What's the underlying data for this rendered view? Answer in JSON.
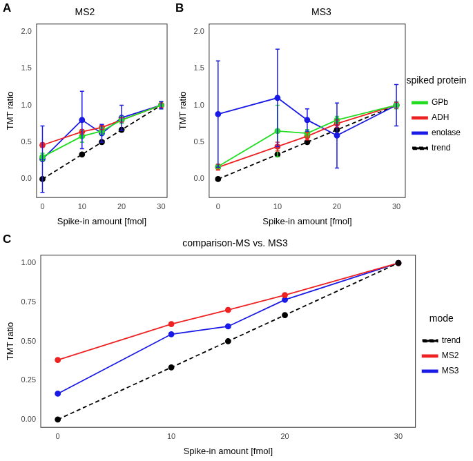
{
  "chart_data": [
    {
      "type": "line",
      "panel": "A",
      "title": "MS2",
      "x_label": "Spike-in amount [fmol]",
      "y_label": "TMT ratio",
      "x": [
        0,
        10,
        15,
        20,
        30
      ],
      "series": [
        {
          "name": "GPb",
          "color": "#22dd22",
          "marker": "circle",
          "line_style": "solid",
          "values": [
            0.3,
            0.58,
            0.65,
            0.8,
            1.0
          ],
          "errors": [
            0.05,
            0.08,
            0.05,
            0.05,
            0.05
          ]
        },
        {
          "name": "ADH",
          "color": "#ee2222",
          "marker": "circle",
          "line_style": "solid",
          "values": [
            0.46,
            0.64,
            0.7,
            0.8,
            1.0
          ],
          "errors": [
            0.03,
            0.03,
            0.03,
            0.03,
            0.03
          ]
        },
        {
          "name": "enolase",
          "color": "#1a1ae6",
          "marker": "circle",
          "line_style": "solid",
          "values": [
            0.27,
            0.8,
            0.62,
            0.83,
            1.0
          ],
          "errors": [
            0.45,
            0.39,
            0.12,
            0.17,
            0.05
          ]
        },
        {
          "name": "trend",
          "color": "#000000",
          "marker": "circle",
          "line_style": "dashed",
          "values": [
            0,
            0.333,
            0.5,
            0.667,
            1.0
          ]
        }
      ],
      "xlim": [
        -1.5,
        31.5
      ],
      "xticks": [
        0,
        10,
        20,
        30
      ],
      "ylim": [
        -0.25,
        2.1
      ],
      "yticks": [
        {
          "value": 0,
          "label": "0.0"
        },
        0.5,
        {
          "value": 1,
          "label": "1.0"
        },
        1.5,
        {
          "value": 2,
          "label": "2.0"
        }
      ],
      "grid": false,
      "legend": false
    },
    {
      "type": "line",
      "panel": "B",
      "title": "MS3",
      "x_label": "Spike-in amount [fmol]",
      "y_label": "TMT ratio",
      "legend_title": "spiked protein",
      "x": [
        0,
        10,
        15,
        20,
        30
      ],
      "series": [
        {
          "name": "GPb",
          "color": "#22dd22",
          "marker": "circle",
          "line_style": "solid",
          "values": [
            0.17,
            0.65,
            0.62,
            0.8,
            1.0
          ],
          "errors": [
            0.03,
            0.35,
            0.05,
            0.05,
            0.05
          ]
        },
        {
          "name": "ADH",
          "color": "#ee2222",
          "marker": "circle",
          "line_style": "solid",
          "values": [
            0.16,
            0.44,
            0.58,
            0.75,
            1.0
          ],
          "errors": [
            0.04,
            0.06,
            0.05,
            0.05,
            0.04
          ]
        },
        {
          "name": "enolase",
          "color": "#1a1ae6",
          "marker": "circle",
          "line_style": "solid",
          "values": [
            0.88,
            1.1,
            0.8,
            0.59,
            1.0
          ],
          "errors": [
            0.72,
            0.66,
            0.15,
            0.44,
            0.28
          ]
        },
        {
          "name": "trend",
          "color": "#000000",
          "marker": "circle",
          "line_style": "dashed",
          "values": [
            0,
            0.333,
            0.5,
            0.667,
            1.0
          ]
        }
      ],
      "xlim": [
        -1.5,
        31.5
      ],
      "xticks": [
        0,
        10,
        20,
        30
      ],
      "ylim": [
        -0.25,
        2.1
      ],
      "yticks": [
        {
          "value": 0,
          "label": "0.0"
        },
        0.5,
        {
          "value": 1,
          "label": "1.0"
        },
        1.5,
        {
          "value": 2,
          "label": "2.0"
        }
      ],
      "grid": false,
      "legend": "right"
    },
    {
      "type": "line",
      "panel": "C",
      "title": "comparison-MS vs. MS3",
      "x_label": "Spike-in amount [fmol]",
      "y_label": "TMT ratio",
      "legend_title": "mode",
      "x": [
        0,
        10,
        15,
        20,
        30
      ],
      "series": [
        {
          "name": "trend",
          "color": "#000000",
          "marker": "circle",
          "line_style": "dashed",
          "values": [
            0,
            0.333,
            0.5,
            0.667,
            1.0
          ]
        },
        {
          "name": "MS2",
          "color": "#ee2222",
          "marker": "circle",
          "line_style": "solid",
          "values": [
            0.38,
            0.61,
            0.7,
            0.795,
            1.0
          ]
        },
        {
          "name": "MS3",
          "color": "#1a1ae6",
          "marker": "circle",
          "line_style": "solid",
          "values": [
            0.165,
            0.545,
            0.595,
            0.765,
            1.0
          ]
        }
      ],
      "xlim": [
        -1.5,
        31.5
      ],
      "xticks": [
        0,
        10,
        20,
        30
      ],
      "ylim": [
        -0.05,
        1.05
      ],
      "yticks": [
        {
          "value": 0,
          "label": "0.00"
        },
        {
          "value": 0.25,
          "label": "0.25"
        },
        {
          "value": 0.5,
          "label": "0.50"
        },
        {
          "value": 0.75,
          "label": "0.75"
        },
        {
          "value": 1,
          "label": "1.00"
        }
      ],
      "grid": false,
      "legend": "right"
    }
  ]
}
